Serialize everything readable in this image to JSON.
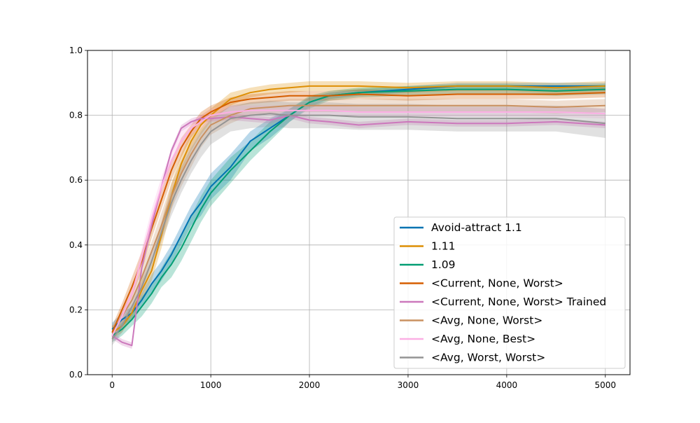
{
  "chart_data": {
    "type": "line",
    "title": "",
    "xlabel": "",
    "ylabel": "",
    "xlim": [
      -250,
      5250
    ],
    "ylim": [
      0.0,
      1.0
    ],
    "x_ticks": [
      "0",
      "1000",
      "2000",
      "3000",
      "4000",
      "5000"
    ],
    "y_ticks": [
      "0.0",
      "0.2",
      "0.4",
      "0.6",
      "0.8",
      "1.0"
    ],
    "grid": true,
    "legend_position": "lower right",
    "x": [
      0,
      100,
      200,
      300,
      400,
      500,
      600,
      700,
      800,
      900,
      1000,
      1200,
      1400,
      1600,
      1800,
      2000,
      2200,
      2500,
      3000,
      3500,
      4000,
      4500,
      5000
    ],
    "series": [
      {
        "name": "Avoid-attract 1.1",
        "color": "#0173b2",
        "values": [
          0.14,
          0.17,
          0.19,
          0.23,
          0.28,
          0.32,
          0.37,
          0.43,
          0.49,
          0.53,
          0.58,
          0.64,
          0.72,
          0.76,
          0.8,
          0.84,
          0.86,
          0.87,
          0.88,
          0.89,
          0.89,
          0.89,
          0.89
        ],
        "band": [
          0.02,
          0.02,
          0.02,
          0.02,
          0.03,
          0.03,
          0.03,
          0.03,
          0.03,
          0.04,
          0.04,
          0.04,
          0.03,
          0.03,
          0.02,
          0.015,
          0.01,
          0.01,
          0.01,
          0.01,
          0.01,
          0.01,
          0.01
        ]
      },
      {
        "name": "1.11",
        "color": "#de8f05",
        "values": [
          0.13,
          0.15,
          0.19,
          0.26,
          0.32,
          0.43,
          0.55,
          0.65,
          0.72,
          0.77,
          0.8,
          0.85,
          0.87,
          0.88,
          0.885,
          0.89,
          0.89,
          0.89,
          0.885,
          0.89,
          0.89,
          0.885,
          0.89
        ],
        "band": [
          0.02,
          0.02,
          0.02,
          0.03,
          0.03,
          0.04,
          0.04,
          0.03,
          0.03,
          0.03,
          0.02,
          0.02,
          0.015,
          0.015,
          0.015,
          0.015,
          0.015,
          0.015,
          0.015,
          0.015,
          0.015,
          0.015,
          0.015
        ]
      },
      {
        "name": "1.09",
        "color": "#029e73",
        "values": [
          0.12,
          0.14,
          0.17,
          0.21,
          0.25,
          0.3,
          0.34,
          0.39,
          0.45,
          0.51,
          0.56,
          0.63,
          0.69,
          0.75,
          0.8,
          0.84,
          0.86,
          0.87,
          0.875,
          0.88,
          0.88,
          0.875,
          0.88
        ],
        "band": [
          0.02,
          0.02,
          0.02,
          0.03,
          0.03,
          0.03,
          0.04,
          0.04,
          0.04,
          0.04,
          0.04,
          0.04,
          0.03,
          0.03,
          0.02,
          0.02,
          0.015,
          0.015,
          0.015,
          0.015,
          0.015,
          0.015,
          0.015
        ]
      },
      {
        "name": "<Current, None, Worst>",
        "color": "#d55e00",
        "values": [
          0.13,
          0.2,
          0.27,
          0.35,
          0.45,
          0.54,
          0.63,
          0.7,
          0.75,
          0.79,
          0.81,
          0.84,
          0.85,
          0.855,
          0.86,
          0.86,
          0.86,
          0.865,
          0.86,
          0.865,
          0.865,
          0.865,
          0.87
        ],
        "band": [
          0.02,
          0.02,
          0.03,
          0.03,
          0.03,
          0.03,
          0.03,
          0.03,
          0.02,
          0.02,
          0.02,
          0.015,
          0.015,
          0.015,
          0.015,
          0.015,
          0.015,
          0.015,
          0.015,
          0.015,
          0.015,
          0.015,
          0.015
        ]
      },
      {
        "name": "<Current, None, Worst> Trained",
        "color": "#cc78bc",
        "values": [
          0.12,
          0.1,
          0.09,
          0.33,
          0.46,
          0.58,
          0.69,
          0.76,
          0.78,
          0.79,
          0.79,
          0.795,
          0.79,
          0.785,
          0.8,
          0.785,
          0.78,
          0.77,
          0.78,
          0.775,
          0.775,
          0.78,
          0.77
        ],
        "band": [
          0.01,
          0.01,
          0.01,
          0.01,
          0.01,
          0.01,
          0.01,
          0.01,
          0.01,
          0.01,
          0.01,
          0.01,
          0.01,
          0.01,
          0.01,
          0.01,
          0.01,
          0.01,
          0.01,
          0.01,
          0.01,
          0.01,
          0.01
        ]
      },
      {
        "name": "<Avg, None, Worst>",
        "color": "#ca9161",
        "values": [
          0.12,
          0.18,
          0.23,
          0.3,
          0.38,
          0.46,
          0.55,
          0.62,
          0.68,
          0.73,
          0.77,
          0.8,
          0.82,
          0.825,
          0.83,
          0.83,
          0.83,
          0.83,
          0.83,
          0.83,
          0.83,
          0.825,
          0.83
        ],
        "band": [
          0.02,
          0.02,
          0.02,
          0.03,
          0.03,
          0.04,
          0.04,
          0.04,
          0.04,
          0.03,
          0.03,
          0.025,
          0.02,
          0.02,
          0.02,
          0.02,
          0.02,
          0.02,
          0.02,
          0.02,
          0.02,
          0.02,
          0.02
        ]
      },
      {
        "name": "<Avg, None, Best>",
        "color": "#fbafe4",
        "values": [
          0.12,
          0.18,
          0.25,
          0.36,
          0.48,
          0.58,
          0.66,
          0.72,
          0.76,
          0.78,
          0.8,
          0.81,
          0.815,
          0.815,
          0.815,
          0.815,
          0.815,
          0.81,
          0.81,
          0.81,
          0.81,
          0.81,
          0.805
        ],
        "band": [
          0.02,
          0.02,
          0.02,
          0.03,
          0.03,
          0.03,
          0.03,
          0.03,
          0.02,
          0.02,
          0.02,
          0.02,
          0.015,
          0.015,
          0.015,
          0.015,
          0.015,
          0.015,
          0.015,
          0.015,
          0.015,
          0.015,
          0.015
        ]
      },
      {
        "name": "<Avg, Worst, Worst>",
        "color": "#949494",
        "values": [
          0.11,
          0.15,
          0.21,
          0.27,
          0.35,
          0.44,
          0.53,
          0.6,
          0.66,
          0.71,
          0.75,
          0.79,
          0.8,
          0.805,
          0.8,
          0.8,
          0.8,
          0.795,
          0.795,
          0.79,
          0.79,
          0.79,
          0.775
        ],
        "band": [
          0.02,
          0.02,
          0.02,
          0.03,
          0.03,
          0.03,
          0.04,
          0.04,
          0.04,
          0.04,
          0.04,
          0.04,
          0.04,
          0.04,
          0.04,
          0.04,
          0.04,
          0.04,
          0.04,
          0.04,
          0.04,
          0.04,
          0.045
        ]
      }
    ]
  }
}
